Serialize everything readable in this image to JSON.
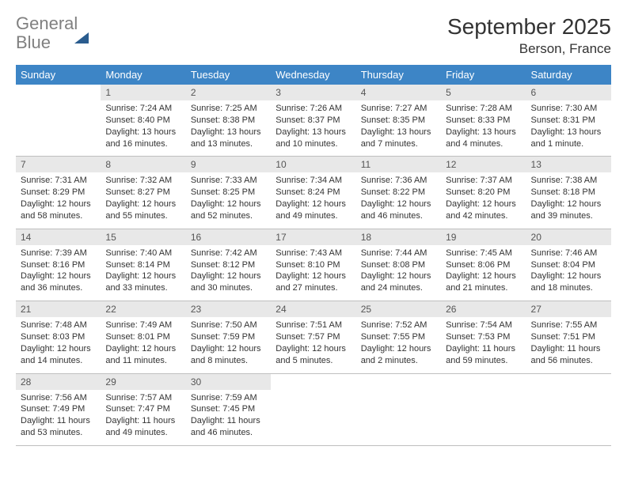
{
  "brand": {
    "word1": "General",
    "word2": "Blue"
  },
  "title": "September 2025",
  "location": "Berson, France",
  "colors": {
    "header_bg": "#3d85c6",
    "header_text": "#ffffff",
    "daynum_bg": "#e8e8e8",
    "daynum_text": "#555555",
    "border": "#bfbfbf",
    "body_text": "#333333",
    "logo_gray": "#808080",
    "logo_blue": "#3d79b3"
  },
  "day_headers": [
    "Sunday",
    "Monday",
    "Tuesday",
    "Wednesday",
    "Thursday",
    "Friday",
    "Saturday"
  ],
  "weeks": [
    [
      null,
      {
        "n": "1",
        "sr": "7:24 AM",
        "ss": "8:40 PM",
        "dl": "13 hours and 16 minutes."
      },
      {
        "n": "2",
        "sr": "7:25 AM",
        "ss": "8:38 PM",
        "dl": "13 hours and 13 minutes."
      },
      {
        "n": "3",
        "sr": "7:26 AM",
        "ss": "8:37 PM",
        "dl": "13 hours and 10 minutes."
      },
      {
        "n": "4",
        "sr": "7:27 AM",
        "ss": "8:35 PM",
        "dl": "13 hours and 7 minutes."
      },
      {
        "n": "5",
        "sr": "7:28 AM",
        "ss": "8:33 PM",
        "dl": "13 hours and 4 minutes."
      },
      {
        "n": "6",
        "sr": "7:30 AM",
        "ss": "8:31 PM",
        "dl": "13 hours and 1 minute."
      }
    ],
    [
      {
        "n": "7",
        "sr": "7:31 AM",
        "ss": "8:29 PM",
        "dl": "12 hours and 58 minutes."
      },
      {
        "n": "8",
        "sr": "7:32 AM",
        "ss": "8:27 PM",
        "dl": "12 hours and 55 minutes."
      },
      {
        "n": "9",
        "sr": "7:33 AM",
        "ss": "8:25 PM",
        "dl": "12 hours and 52 minutes."
      },
      {
        "n": "10",
        "sr": "7:34 AM",
        "ss": "8:24 PM",
        "dl": "12 hours and 49 minutes."
      },
      {
        "n": "11",
        "sr": "7:36 AM",
        "ss": "8:22 PM",
        "dl": "12 hours and 46 minutes."
      },
      {
        "n": "12",
        "sr": "7:37 AM",
        "ss": "8:20 PM",
        "dl": "12 hours and 42 minutes."
      },
      {
        "n": "13",
        "sr": "7:38 AM",
        "ss": "8:18 PM",
        "dl": "12 hours and 39 minutes."
      }
    ],
    [
      {
        "n": "14",
        "sr": "7:39 AM",
        "ss": "8:16 PM",
        "dl": "12 hours and 36 minutes."
      },
      {
        "n": "15",
        "sr": "7:40 AM",
        "ss": "8:14 PM",
        "dl": "12 hours and 33 minutes."
      },
      {
        "n": "16",
        "sr": "7:42 AM",
        "ss": "8:12 PM",
        "dl": "12 hours and 30 minutes."
      },
      {
        "n": "17",
        "sr": "7:43 AM",
        "ss": "8:10 PM",
        "dl": "12 hours and 27 minutes."
      },
      {
        "n": "18",
        "sr": "7:44 AM",
        "ss": "8:08 PM",
        "dl": "12 hours and 24 minutes."
      },
      {
        "n": "19",
        "sr": "7:45 AM",
        "ss": "8:06 PM",
        "dl": "12 hours and 21 minutes."
      },
      {
        "n": "20",
        "sr": "7:46 AM",
        "ss": "8:04 PM",
        "dl": "12 hours and 18 minutes."
      }
    ],
    [
      {
        "n": "21",
        "sr": "7:48 AM",
        "ss": "8:03 PM",
        "dl": "12 hours and 14 minutes."
      },
      {
        "n": "22",
        "sr": "7:49 AM",
        "ss": "8:01 PM",
        "dl": "12 hours and 11 minutes."
      },
      {
        "n": "23",
        "sr": "7:50 AM",
        "ss": "7:59 PM",
        "dl": "12 hours and 8 minutes."
      },
      {
        "n": "24",
        "sr": "7:51 AM",
        "ss": "7:57 PM",
        "dl": "12 hours and 5 minutes."
      },
      {
        "n": "25",
        "sr": "7:52 AM",
        "ss": "7:55 PM",
        "dl": "12 hours and 2 minutes."
      },
      {
        "n": "26",
        "sr": "7:54 AM",
        "ss": "7:53 PM",
        "dl": "11 hours and 59 minutes."
      },
      {
        "n": "27",
        "sr": "7:55 AM",
        "ss": "7:51 PM",
        "dl": "11 hours and 56 minutes."
      }
    ],
    [
      {
        "n": "28",
        "sr": "7:56 AM",
        "ss": "7:49 PM",
        "dl": "11 hours and 53 minutes."
      },
      {
        "n": "29",
        "sr": "7:57 AM",
        "ss": "7:47 PM",
        "dl": "11 hours and 49 minutes."
      },
      {
        "n": "30",
        "sr": "7:59 AM",
        "ss": "7:45 PM",
        "dl": "11 hours and 46 minutes."
      },
      null,
      null,
      null,
      null
    ]
  ],
  "labels": {
    "sunrise": "Sunrise: ",
    "sunset": "Sunset: ",
    "daylight": "Daylight: "
  }
}
